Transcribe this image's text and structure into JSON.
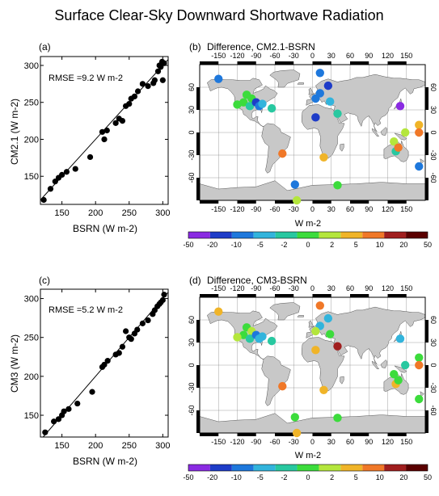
{
  "title": "Surface Clear-Sky Downward Shortwave Radiation",
  "colors": {
    "land": "#c8c8c8",
    "ocean": "#ffffff",
    "scatter_point": "#000000"
  },
  "colorbar": {
    "label": "W m-2",
    "ticks": [
      "-50",
      "-20",
      "-10",
      "-5",
      "-2",
      "0",
      "2",
      "5",
      "10",
      "20",
      "50"
    ],
    "colors": [
      "#8a2be2",
      "#1e3cc8",
      "#1e78dc",
      "#32b4dc",
      "#28c8a0",
      "#3cdc3c",
      "#b4e63c",
      "#f0b428",
      "#f07828",
      "#a01e1e",
      "#5a0000"
    ]
  },
  "map_axes": {
    "lon_ticks": [
      "-150",
      "-120",
      "-90",
      "-60",
      "-30",
      "0",
      "30",
      "60",
      "90",
      "120",
      "150"
    ],
    "lat_ticks": [
      "60",
      "30",
      "0",
      "-30",
      "-60"
    ]
  },
  "chart_data": [
    {
      "type": "scatter",
      "panel": "(a)",
      "annotation": "RMSE =9.2 W m-2",
      "xlabel": "BSRN (W m-2)",
      "ylabel": "CM2.1 (W m-2)",
      "xlim": [
        118,
        308
      ],
      "ylim": [
        112,
        312
      ],
      "xticks": [
        150,
        200,
        250,
        300
      ],
      "yticks": [
        150,
        200,
        250,
        300
      ],
      "reference_line": "1:1",
      "x": [
        123,
        133,
        140,
        145,
        150,
        157,
        170,
        192,
        210,
        213,
        217,
        230,
        235,
        240,
        245,
        250,
        253,
        258,
        263,
        270,
        278,
        286,
        288,
        293,
        295,
        297,
        299,
        300,
        302
      ],
      "y": [
        118,
        133,
        143,
        148,
        152,
        156,
        160,
        176,
        210,
        200,
        212,
        222,
        228,
        225,
        245,
        248,
        255,
        258,
        265,
        275,
        272,
        276,
        280,
        292,
        300,
        298,
        305,
        280,
        303
      ]
    },
    {
      "type": "map",
      "panel": "(b)",
      "title": "Difference, CM2.1-BSRN",
      "points": [
        {
          "lon": -150,
          "lat": 71,
          "value": -10
        },
        {
          "lon": -105,
          "lat": 50,
          "value": 0
        },
        {
          "lon": -97,
          "lat": 45,
          "value": 0
        },
        {
          "lon": -110,
          "lat": 40,
          "value": 0
        },
        {
          "lon": -100,
          "lat": 35,
          "value": -2
        },
        {
          "lon": -90,
          "lat": 40,
          "value": -20
        },
        {
          "lon": -85,
          "lat": 35,
          "value": -10
        },
        {
          "lon": -80,
          "lat": 38,
          "value": -5
        },
        {
          "lon": -120,
          "lat": 37,
          "value": 0
        },
        {
          "lon": -65,
          "lat": 32,
          "value": -2
        },
        {
          "lon": 12,
          "lat": 79,
          "value": -10
        },
        {
          "lon": 25,
          "lat": 62,
          "value": -20
        },
        {
          "lon": 12,
          "lat": 52,
          "value": -10
        },
        {
          "lon": 5,
          "lat": 45,
          "value": -10
        },
        {
          "lon": 28,
          "lat": 41,
          "value": -5
        },
        {
          "lon": 5,
          "lat": 20,
          "value": -20
        },
        {
          "lon": 40,
          "lat": 25,
          "value": -2
        },
        {
          "lon": 140,
          "lat": 35,
          "value": -50
        },
        {
          "lon": 170,
          "lat": 10,
          "value": 5
        },
        {
          "lon": 148,
          "lat": 0,
          "value": 2
        },
        {
          "lon": 130,
          "lat": -12,
          "value": 2
        },
        {
          "lon": 133,
          "lat": -25,
          "value": -2
        },
        {
          "lon": 170,
          "lat": 0,
          "value": 10
        },
        {
          "lon": 137,
          "lat": -20,
          "value": 10
        },
        {
          "lon": 170,
          "lat": -45,
          "value": -10
        },
        {
          "lon": -48,
          "lat": -28,
          "value": 10
        },
        {
          "lon": 18,
          "lat": -33,
          "value": 5
        },
        {
          "lon": -28,
          "lat": -69,
          "value": -10
        },
        {
          "lon": 40,
          "lat": -70,
          "value": 0
        },
        {
          "lon": -25,
          "lat": -90,
          "value": 2
        }
      ]
    },
    {
      "type": "scatter",
      "panel": "(c)",
      "annotation": "RMSE =5.2 W m-2",
      "xlabel": "BSRN (W m-2)",
      "ylabel": "CM3 (W m-2)",
      "xlim": [
        118,
        308
      ],
      "ylim": [
        122,
        312
      ],
      "xticks": [
        150,
        200,
        250,
        300
      ],
      "yticks": [
        150,
        200,
        250,
        300
      ],
      "reference_line": "1:1",
      "x": [
        125,
        138,
        145,
        150,
        153,
        160,
        173,
        195,
        210,
        213,
        218,
        230,
        235,
        240,
        245,
        250,
        253,
        258,
        262,
        270,
        278,
        285,
        288,
        292,
        295,
        297,
        300,
        302
      ],
      "y": [
        128,
        142,
        145,
        150,
        155,
        158,
        165,
        180,
        212,
        215,
        220,
        228,
        230,
        238,
        258,
        250,
        248,
        255,
        260,
        268,
        272,
        280,
        285,
        290,
        293,
        295,
        298,
        305
      ]
    },
    {
      "type": "map",
      "panel": "(d)",
      "title": "Difference, CM3-BSRN",
      "points": [
        {
          "lon": -150,
          "lat": 71,
          "value": 5
        },
        {
          "lon": -105,
          "lat": 50,
          "value": 0
        },
        {
          "lon": -97,
          "lat": 45,
          "value": 2
        },
        {
          "lon": -110,
          "lat": 40,
          "value": 0
        },
        {
          "lon": -100,
          "lat": 35,
          "value": -2
        },
        {
          "lon": -90,
          "lat": 40,
          "value": -10
        },
        {
          "lon": -85,
          "lat": 35,
          "value": -5
        },
        {
          "lon": -80,
          "lat": 38,
          "value": -5
        },
        {
          "lon": -120,
          "lat": 37,
          "value": 2
        },
        {
          "lon": -65,
          "lat": 32,
          "value": -2
        },
        {
          "lon": 12,
          "lat": 79,
          "value": 10
        },
        {
          "lon": 25,
          "lat": 62,
          "value": -5
        },
        {
          "lon": 12,
          "lat": 52,
          "value": -5
        },
        {
          "lon": 5,
          "lat": 45,
          "value": 2
        },
        {
          "lon": 28,
          "lat": 41,
          "value": 0
        },
        {
          "lon": 5,
          "lat": 20,
          "value": 5
        },
        {
          "lon": 40,
          "lat": 25,
          "value": 20
        },
        {
          "lon": 140,
          "lat": 35,
          "value": -5
        },
        {
          "lon": 170,
          "lat": 10,
          "value": 0
        },
        {
          "lon": 148,
          "lat": 0,
          "value": -2
        },
        {
          "lon": 130,
          "lat": -12,
          "value": 0
        },
        {
          "lon": 133,
          "lat": -25,
          "value": 5
        },
        {
          "lon": 170,
          "lat": 0,
          "value": 10
        },
        {
          "lon": 137,
          "lat": -20,
          "value": 0
        },
        {
          "lon": 170,
          "lat": -45,
          "value": 0
        },
        {
          "lon": -48,
          "lat": -28,
          "value": 10
        },
        {
          "lon": 18,
          "lat": -33,
          "value": 5
        },
        {
          "lon": -28,
          "lat": -69,
          "value": 0
        },
        {
          "lon": 40,
          "lat": -70,
          "value": 0
        },
        {
          "lon": -25,
          "lat": -90,
          "value": 5
        }
      ]
    }
  ]
}
